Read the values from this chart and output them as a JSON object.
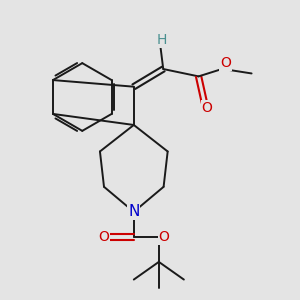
{
  "background_color": "#e4e4e4",
  "bond_color": "#1a1a1a",
  "atom_colors": {
    "O": "#cc0000",
    "N": "#0000cc",
    "H": "#4a9090",
    "C": "#1a1a1a"
  },
  "figsize": [
    3.0,
    3.0
  ],
  "dpi": 100,
  "xlim": [
    0.0,
    1.0
  ],
  "ylim": [
    0.0,
    1.0
  ]
}
